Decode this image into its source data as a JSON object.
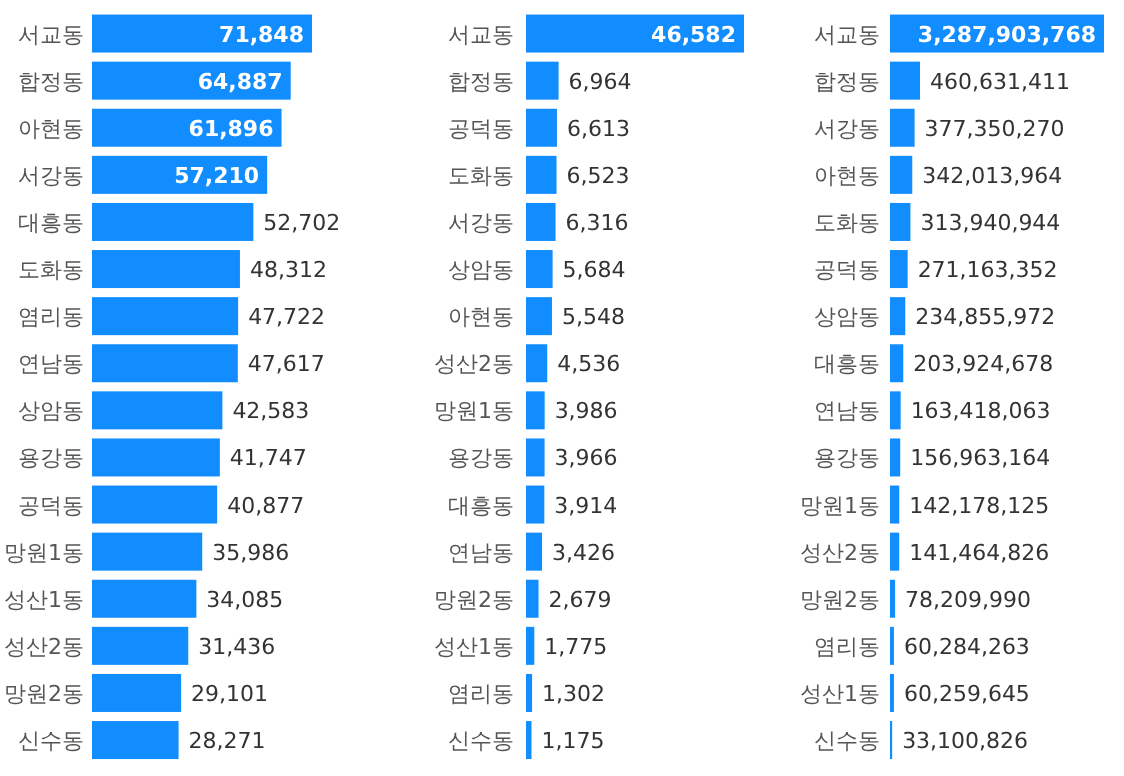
{
  "chart_data": [
    {
      "type": "bar",
      "orientation": "horizontal",
      "color": "#118dff",
      "categories": [
        "서교동",
        "합정동",
        "아현동",
        "서강동",
        "대흥동",
        "도화동",
        "염리동",
        "연남동",
        "상암동",
        "용강동",
        "공덕동",
        "망원1동",
        "성산1동",
        "성산2동",
        "망원2동",
        "신수동"
      ],
      "values": [
        71848,
        64887,
        61896,
        57210,
        52702,
        48312,
        47722,
        47617,
        42583,
        41747,
        40877,
        35986,
        34085,
        31436,
        29101,
        28271
      ],
      "value_labels": [
        "71,848",
        "64,887",
        "61,896",
        "57,210",
        "52,702",
        "48,312",
        "47,722",
        "47,617",
        "42,583",
        "41,747",
        "40,877",
        "35,986",
        "34,085",
        "31,436",
        "29,101",
        "28,271"
      ]
    },
    {
      "type": "bar",
      "orientation": "horizontal",
      "color": "#118dff",
      "categories": [
        "서교동",
        "합정동",
        "공덕동",
        "도화동",
        "서강동",
        "상암동",
        "아현동",
        "성산2동",
        "망원1동",
        "용강동",
        "대흥동",
        "연남동",
        "망원2동",
        "성산1동",
        "염리동",
        "신수동"
      ],
      "values": [
        46582,
        6964,
        6613,
        6523,
        6316,
        5684,
        5548,
        4536,
        3986,
        3966,
        3914,
        3426,
        2679,
        1775,
        1302,
        1175
      ],
      "value_labels": [
        "46,582",
        "6,964",
        "6,613",
        "6,523",
        "6,316",
        "5,684",
        "5,548",
        "4,536",
        "3,986",
        "3,966",
        "3,914",
        "3,426",
        "2,679",
        "1,775",
        "1,302",
        "1,175"
      ]
    },
    {
      "type": "bar",
      "orientation": "horizontal",
      "color": "#118dff",
      "categories": [
        "서교동",
        "합정동",
        "서강동",
        "아현동",
        "도화동",
        "공덕동",
        "상암동",
        "대흥동",
        "연남동",
        "용강동",
        "망원1동",
        "성산2동",
        "망원2동",
        "염리동",
        "성산1동",
        "신수동"
      ],
      "values": [
        3287903768,
        460631411,
        377350270,
        342013964,
        313940944,
        271163352,
        234855972,
        203924678,
        163418063,
        156963164,
        142178125,
        141464826,
        78209990,
        60284263,
        60259645,
        33100826
      ],
      "value_labels": [
        "3,287,903,768",
        "460,631,411",
        "377,350,270",
        "342,013,964",
        "313,940,944",
        "271,163,352",
        "234,855,972",
        "203,924,678",
        "163,418,063",
        "156,963,164",
        "142,178,125",
        "141,464,826",
        "78,209,990",
        "60,284,263",
        "60,259,645",
        "33,100,826"
      ]
    }
  ]
}
